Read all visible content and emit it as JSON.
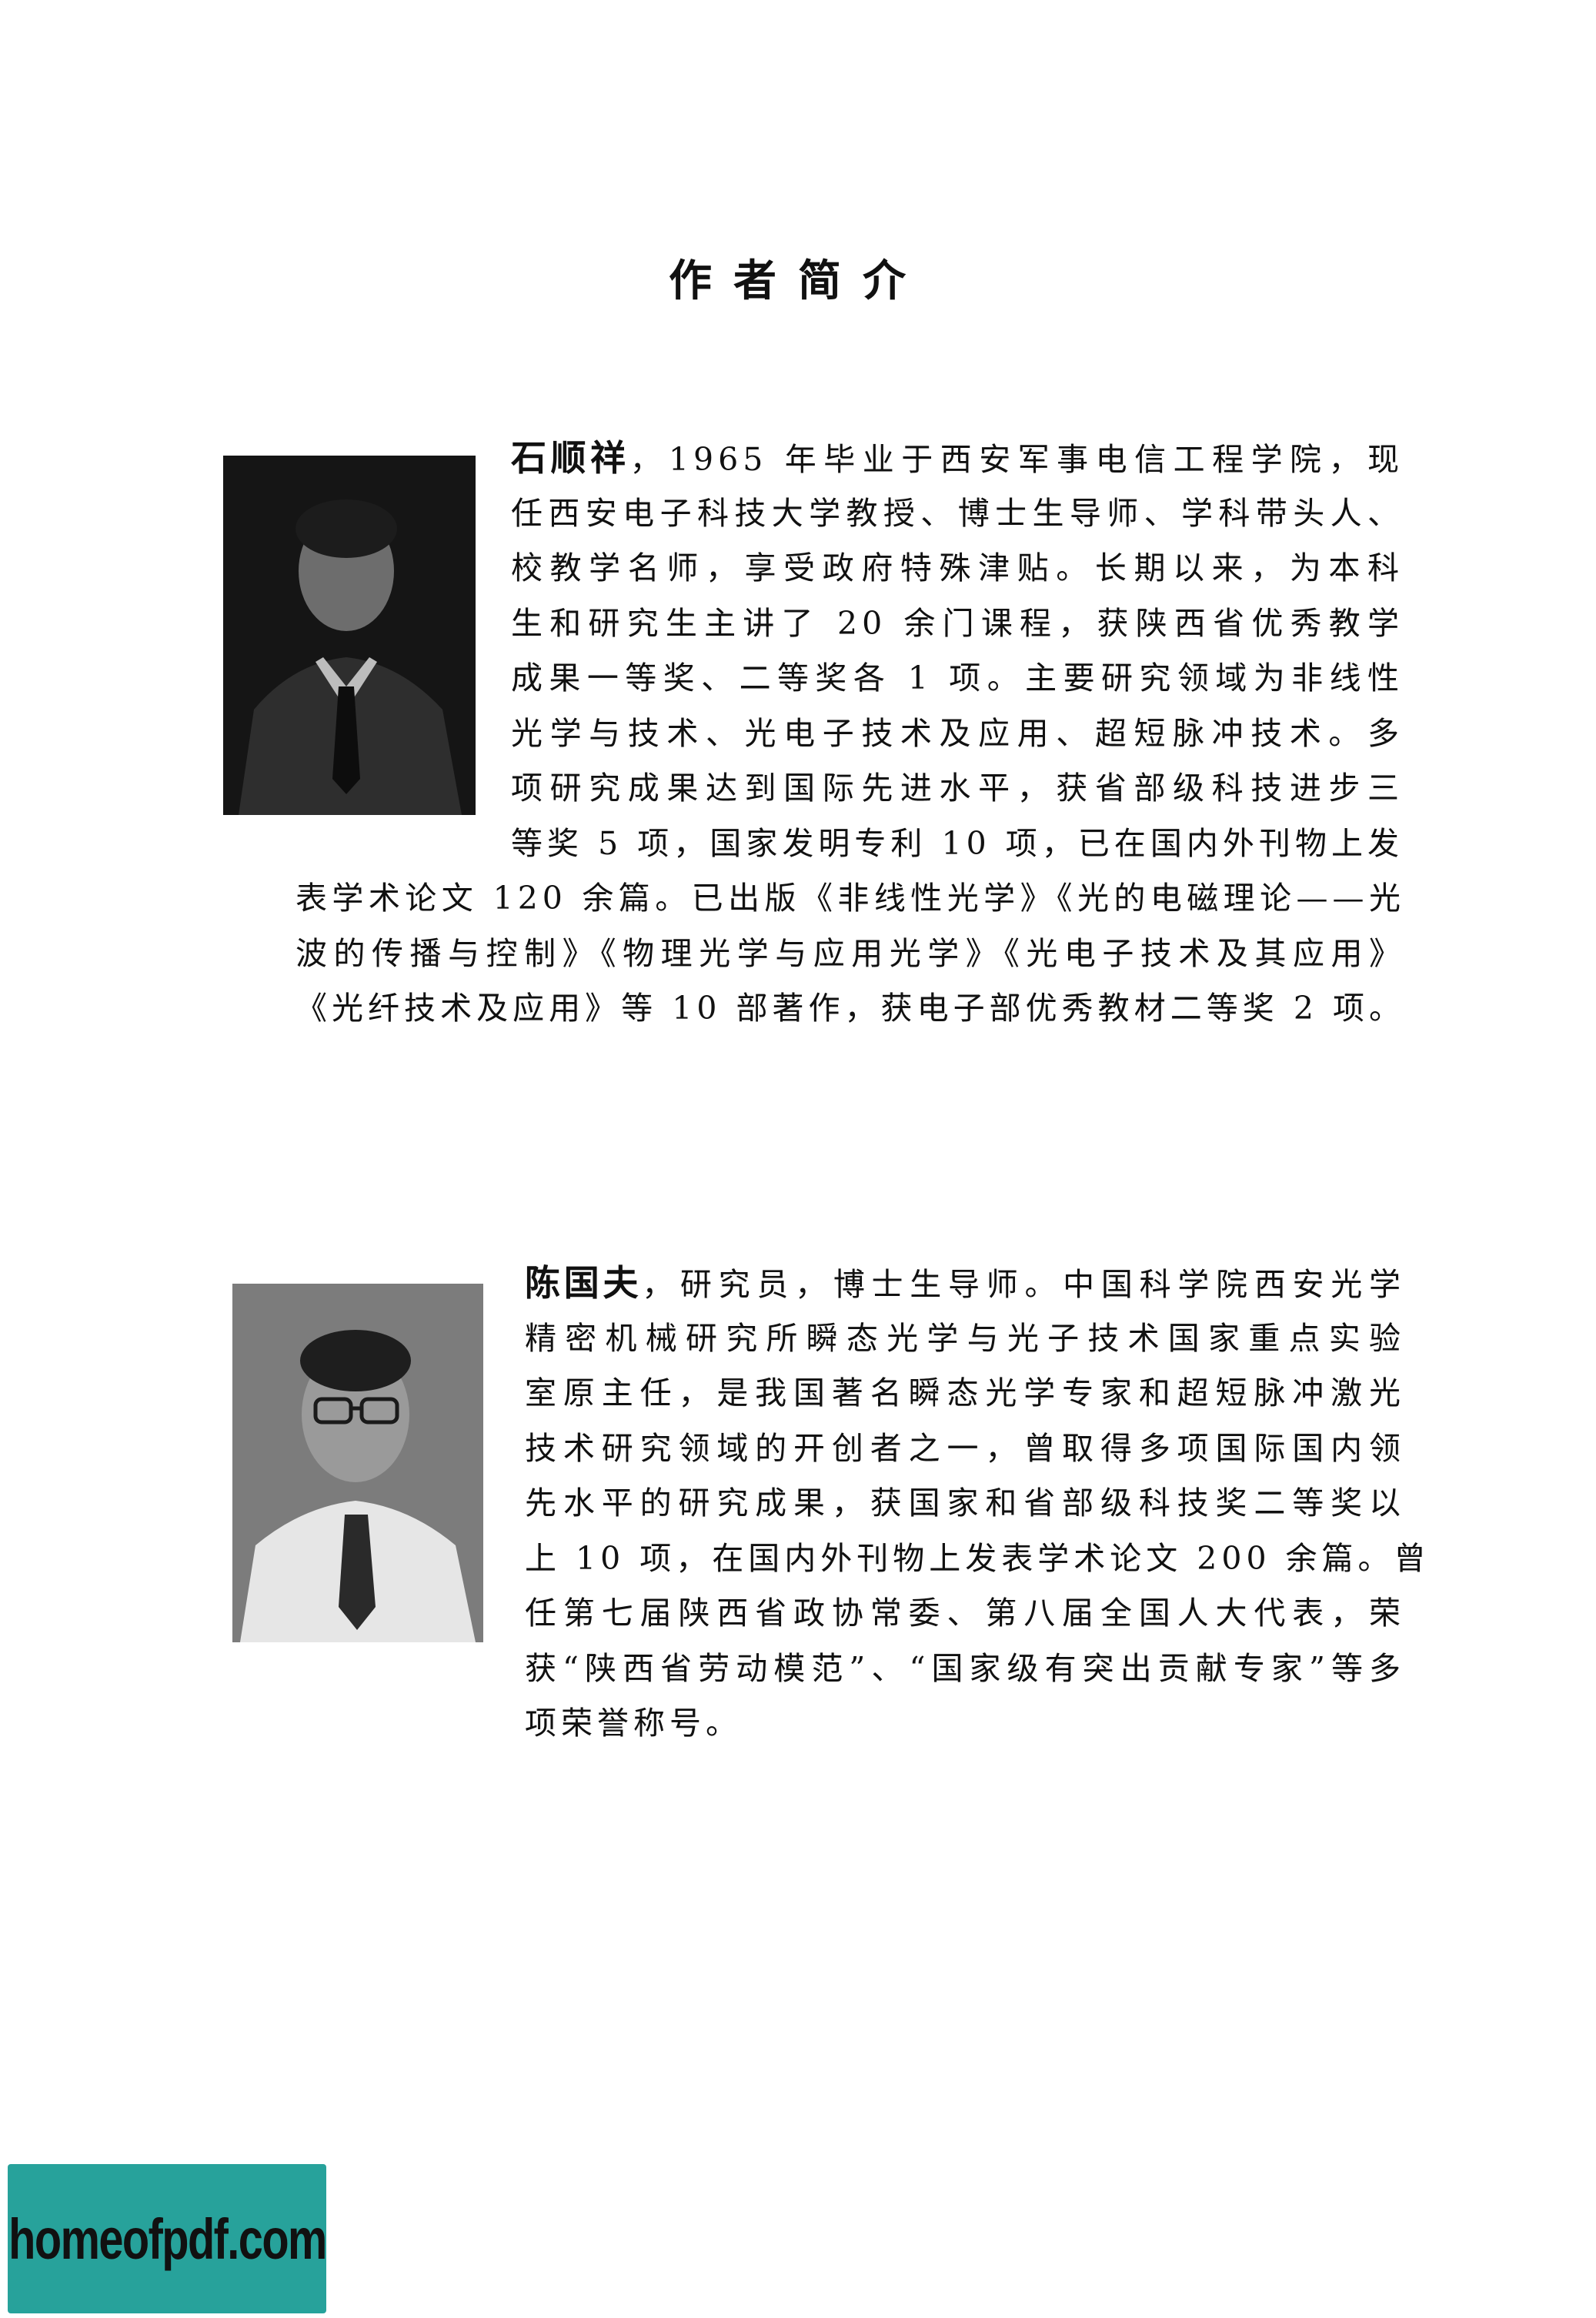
{
  "page": {
    "title": "作者简介"
  },
  "author_1": {
    "name": "石顺祥",
    "lines_beside_photo": [
      "，1965 年毕业于西安军事电信工程学院，现",
      "任西安电子科技大学教授、博士生导师、学科带头人、",
      "校教学名师，享受政府特殊津贴。长期以来，为本科",
      "生和研究生主讲了 20 余门课程，获陕西省优秀教学",
      "成果一等奖、二等奖各 1 项。主要研究领域为非线性",
      "光学与技术、光电子技术及应用、超短脉冲技术。多",
      "项研究成果达到国际先进水平，获省部级科技进步三",
      "等奖 5 项，国家发明专利 10 项，已在国内外刊物上发"
    ],
    "lines_full_width": [
      "表学术论文 120 余篇。已出版《非线性光学》《光的电磁理论——光",
      "波的传播与控制》《物理光学与应用光学》《光电子技术及其应用》",
      "《光纤技术及应用》等 10 部著作，获电子部优秀教材二等奖 2 项。"
    ]
  },
  "author_2": {
    "name": "陈国夫",
    "lines": [
      "，研究员，博士生导师。中国科学院西安光学",
      "精密机械研究所瞬态光学与光子技术国家重点实验",
      "室原主任，是我国著名瞬态光学专家和超短脉冲激光",
      "技术研究领域的开创者之一，曾取得多项国际国内领",
      "先水平的研究成果，获国家和省部级科技奖二等奖以",
      "上 10 项，在国内外刊物上发表学术论文 200 余篇。曾",
      "任第七届陕西省政协常委、第八届全国人大代表，荣",
      "获“陕西省劳动模范”、“国家级有突出贡献专家”等多",
      "项荣誉称号。"
    ]
  },
  "watermark": {
    "text": "homeofpdf.com",
    "color": "#27a29b"
  }
}
